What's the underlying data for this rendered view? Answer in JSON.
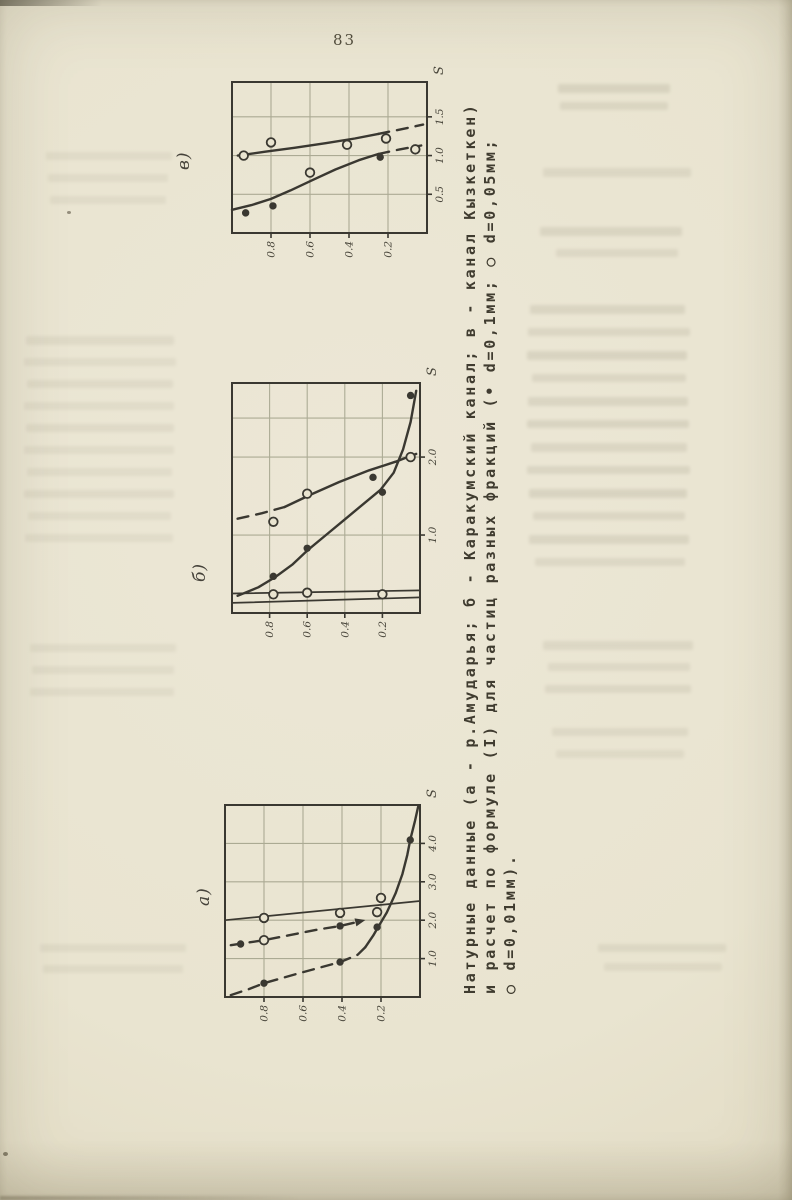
{
  "page": {
    "number": "83"
  },
  "colors": {
    "paper": "#e9e4d0",
    "ink": "#3a3831",
    "grid": "#6e7156",
    "tick_text": "#4a473c"
  },
  "figure": {
    "caption_lines": [
      "Натурные данные (а - р.Амударья; б - Каракумский канал; в - канал Кызкеткен)",
      "и расчет по формуле (I) для частиц разных фракций (• d=0,1мм; ○ d=0,05мм;",
      "○ d=0,01мм)."
    ],
    "rotation_note": "charts and caption printed rotated 90° counter-clockwise on the page"
  },
  "chart_data": [
    {
      "id": "v",
      "panel_label": "в)",
      "type": "line",
      "xlabel": "S",
      "xlim": [
        0,
        1.95
      ],
      "x_ticks": [
        0.5,
        1.0,
        1.5
      ],
      "x_tick_labels": [
        "0.5",
        "1.0",
        "1.5"
      ],
      "ylim": [
        0,
        1.0
      ],
      "y_ticks": [
        0.2,
        0.4,
        0.6,
        0.8
      ],
      "y_tick_labels": [
        "0.2",
        "0.4",
        "0.6",
        "0.8"
      ],
      "grid": true,
      "series": [
        {
          "name": "curve-filled",
          "marker": "filled",
          "weight": "normal",
          "arrow_end": false,
          "segments": [
            {
              "dash": false,
              "pts": [
                [
                  0.3,
                  1.0
                ],
                [
                  0.36,
                  0.9
                ],
                [
                  0.44,
                  0.8
                ],
                [
                  0.55,
                  0.7
                ],
                [
                  0.68,
                  0.59
                ],
                [
                  0.82,
                  0.47
                ],
                [
                  0.94,
                  0.35
                ],
                [
                  1.02,
                  0.25
                ]
              ]
            },
            {
              "dash": true,
              "pts": [
                [
                  1.02,
                  0.25
                ],
                [
                  1.08,
                  0.14
                ],
                [
                  1.13,
                  0.03
                ]
              ]
            }
          ],
          "points_filled": [
            [
              0.26,
              0.93
            ],
            [
              0.35,
              0.79
            ],
            [
              0.98,
              0.24
            ]
          ],
          "points_open": [
            [
              1.08,
              0.06
            ]
          ]
        },
        {
          "name": "curve-open",
          "marker": "open",
          "weight": "normal",
          "arrow_end": false,
          "segments": [
            {
              "dash": false,
              "pts": [
                [
                  1.0,
                  0.97
                ],
                [
                  1.05,
                  0.83
                ],
                [
                  1.1,
                  0.68
                ],
                [
                  1.16,
                  0.52
                ],
                [
                  1.22,
                  0.37
                ],
                [
                  1.28,
                  0.25
                ]
              ]
            },
            {
              "dash": true,
              "pts": [
                [
                  1.28,
                  0.25
                ],
                [
                  1.34,
                  0.13
                ],
                [
                  1.4,
                  0.02
                ]
              ]
            }
          ],
          "points_filled": [],
          "points_open": [
            [
              1.0,
              0.94
            ],
            [
              1.17,
              0.8
            ],
            [
              1.14,
              0.41
            ],
            [
              1.22,
              0.21
            ],
            [
              0.78,
              0.6
            ]
          ]
        }
      ]
    },
    {
      "id": "b",
      "panel_label": "б)",
      "type": "line",
      "xlabel": "S",
      "xlim": [
        0,
        2.95
      ],
      "x_ticks": [
        1.0,
        2.0
      ],
      "x_tick_labels": [
        "1.0",
        "2.0"
      ],
      "x_grid": [
        1.0,
        2.0,
        2.5
      ],
      "ylim": [
        0,
        1.0
      ],
      "y_ticks": [
        0.2,
        0.4,
        0.6,
        0.8
      ],
      "y_tick_labels": [
        "0.2",
        "0.4",
        "0.6",
        "0.8"
      ],
      "grid": true,
      "series": [
        {
          "name": "curve-flat-2",
          "marker": "none",
          "weight": "thin",
          "arrow_end": false,
          "segments": [
            {
              "dash": false,
              "pts": [
                [
                  0.13,
                  1.0
                ],
                [
                  0.2,
                  0.0
                ]
              ]
            }
          ],
          "points_filled": [],
          "points_open": []
        },
        {
          "name": "curve-flat",
          "marker": "open",
          "weight": "thin",
          "arrow_end": false,
          "segments": [
            {
              "dash": false,
              "pts": [
                [
                  0.25,
                  1.0
                ],
                [
                  0.29,
                  0.0
                ]
              ]
            }
          ],
          "points_filled": [],
          "points_open": [
            [
              0.24,
              0.78
            ],
            [
              0.26,
              0.6
            ],
            [
              0.24,
              0.2
            ]
          ]
        },
        {
          "name": "curve-filled",
          "marker": "filled",
          "weight": "normal",
          "arrow_end": false,
          "segments": [
            {
              "dash": false,
              "pts": [
                [
                  0.22,
                  0.97
                ],
                [
                  0.33,
                  0.86
                ],
                [
                  0.46,
                  0.77
                ],
                [
                  0.62,
                  0.68
                ],
                [
                  0.8,
                  0.6
                ],
                [
                  1.0,
                  0.5
                ],
                [
                  1.2,
                  0.4
                ],
                [
                  1.4,
                  0.3
                ],
                [
                  1.58,
                  0.21
                ],
                [
                  1.8,
                  0.14
                ],
                [
                  2.1,
                  0.09
                ],
                [
                  2.45,
                  0.05
                ],
                [
                  2.85,
                  0.02
                ]
              ]
            }
          ],
          "points_filled": [
            [
              0.47,
              0.78
            ],
            [
              0.83,
              0.6
            ],
            [
              1.55,
              0.2
            ],
            [
              1.74,
              0.25
            ],
            [
              2.79,
              0.05
            ]
          ],
          "points_open": []
        },
        {
          "name": "curve-open",
          "marker": "open",
          "weight": "normal",
          "arrow_end": false,
          "segments": [
            {
              "dash": true,
              "pts": [
                [
                  1.21,
                  0.97
                ],
                [
                  1.28,
                  0.84
                ],
                [
                  1.36,
                  0.72
                ]
              ]
            },
            {
              "dash": false,
              "pts": [
                [
                  1.36,
                  0.72
                ],
                [
                  1.52,
                  0.58
                ],
                [
                  1.68,
                  0.43
                ],
                [
                  1.83,
                  0.27
                ],
                [
                  1.94,
                  0.13
                ]
              ]
            },
            {
              "dash": true,
              "pts": [
                [
                  1.94,
                  0.13
                ],
                [
                  2.04,
                  0.02
                ]
              ]
            }
          ],
          "points_filled": [],
          "points_open": [
            [
              1.17,
              0.78
            ],
            [
              1.53,
              0.6
            ],
            [
              2.0,
              0.05
            ]
          ]
        }
      ]
    },
    {
      "id": "a",
      "panel_label": "а)",
      "type": "line",
      "xlabel": "S",
      "xlim": [
        0,
        5.0
      ],
      "x_ticks": [
        1.0,
        2.0,
        3.0,
        4.0
      ],
      "x_tick_labels": [
        "1.0",
        "2.0",
        "3.0",
        "4.0"
      ],
      "ylim": [
        0,
        1.0
      ],
      "y_ticks": [
        0.2,
        0.4,
        0.6,
        0.8
      ],
      "y_tick_labels": [
        "0.2",
        "0.4",
        "0.6",
        "0.8"
      ],
      "grid": true,
      "series": [
        {
          "name": "curve-filled",
          "marker": "filled",
          "weight": "normal",
          "arrow_end": false,
          "segments": [
            {
              "dash": true,
              "pts": [
                [
                  0.05,
                  0.97
                ],
                [
                  0.2,
                  0.88
                ],
                [
                  0.36,
                  0.8
                ],
                [
                  0.62,
                  0.62
                ],
                [
                  0.91,
                  0.41
                ],
                [
                  1.1,
                  0.32
                ],
                [
                  1.3,
                  0.28
                ]
              ]
            },
            {
              "dash": false,
              "pts": [
                [
                  1.3,
                  0.28
                ],
                [
                  1.6,
                  0.24
                ],
                [
                  1.82,
                  0.215
                ],
                [
                  2.2,
                  0.17
                ],
                [
                  2.7,
                  0.125
                ],
                [
                  3.2,
                  0.09
                ],
                [
                  3.7,
                  0.065
                ],
                [
                  4.1,
                  0.05
                ],
                [
                  4.6,
                  0.025
                ],
                [
                  4.95,
                  0.01
                ]
              ]
            }
          ],
          "points_filled": [
            [
              0.36,
              0.8
            ],
            [
              0.91,
              0.41
            ],
            [
              1.82,
              0.22
            ],
            [
              4.09,
              0.05
            ]
          ],
          "points_open": []
        },
        {
          "name": "curve-mid-arrow",
          "marker": "mixed",
          "weight": "normal",
          "arrow_end": true,
          "segments": [
            {
              "dash": true,
              "pts": [
                [
                  1.35,
                  0.97
                ],
                [
                  1.42,
                  0.88
                ],
                [
                  1.48,
                  0.8
                ],
                [
                  1.62,
                  0.66
                ],
                [
                  1.76,
                  0.52
                ],
                [
                  1.85,
                  0.41
                ],
                [
                  1.98,
                  0.3
                ]
              ]
            }
          ],
          "points_filled": [
            [
              1.38,
              0.92
            ],
            [
              1.85,
              0.41
            ]
          ],
          "points_open": [
            [
              1.48,
              0.8
            ]
          ]
        },
        {
          "name": "curve-flat",
          "marker": "open",
          "weight": "thin",
          "arrow_end": false,
          "segments": [
            {
              "dash": false,
              "pts": [
                [
                  2.0,
                  1.0
                ],
                [
                  2.5,
                  0.0
                ]
              ]
            }
          ],
          "points_filled": [],
          "points_open": [
            [
              2.06,
              0.8
            ],
            [
              2.19,
              0.41
            ],
            [
              2.21,
              0.22
            ],
            [
              2.58,
              0.2
            ]
          ]
        }
      ]
    }
  ]
}
